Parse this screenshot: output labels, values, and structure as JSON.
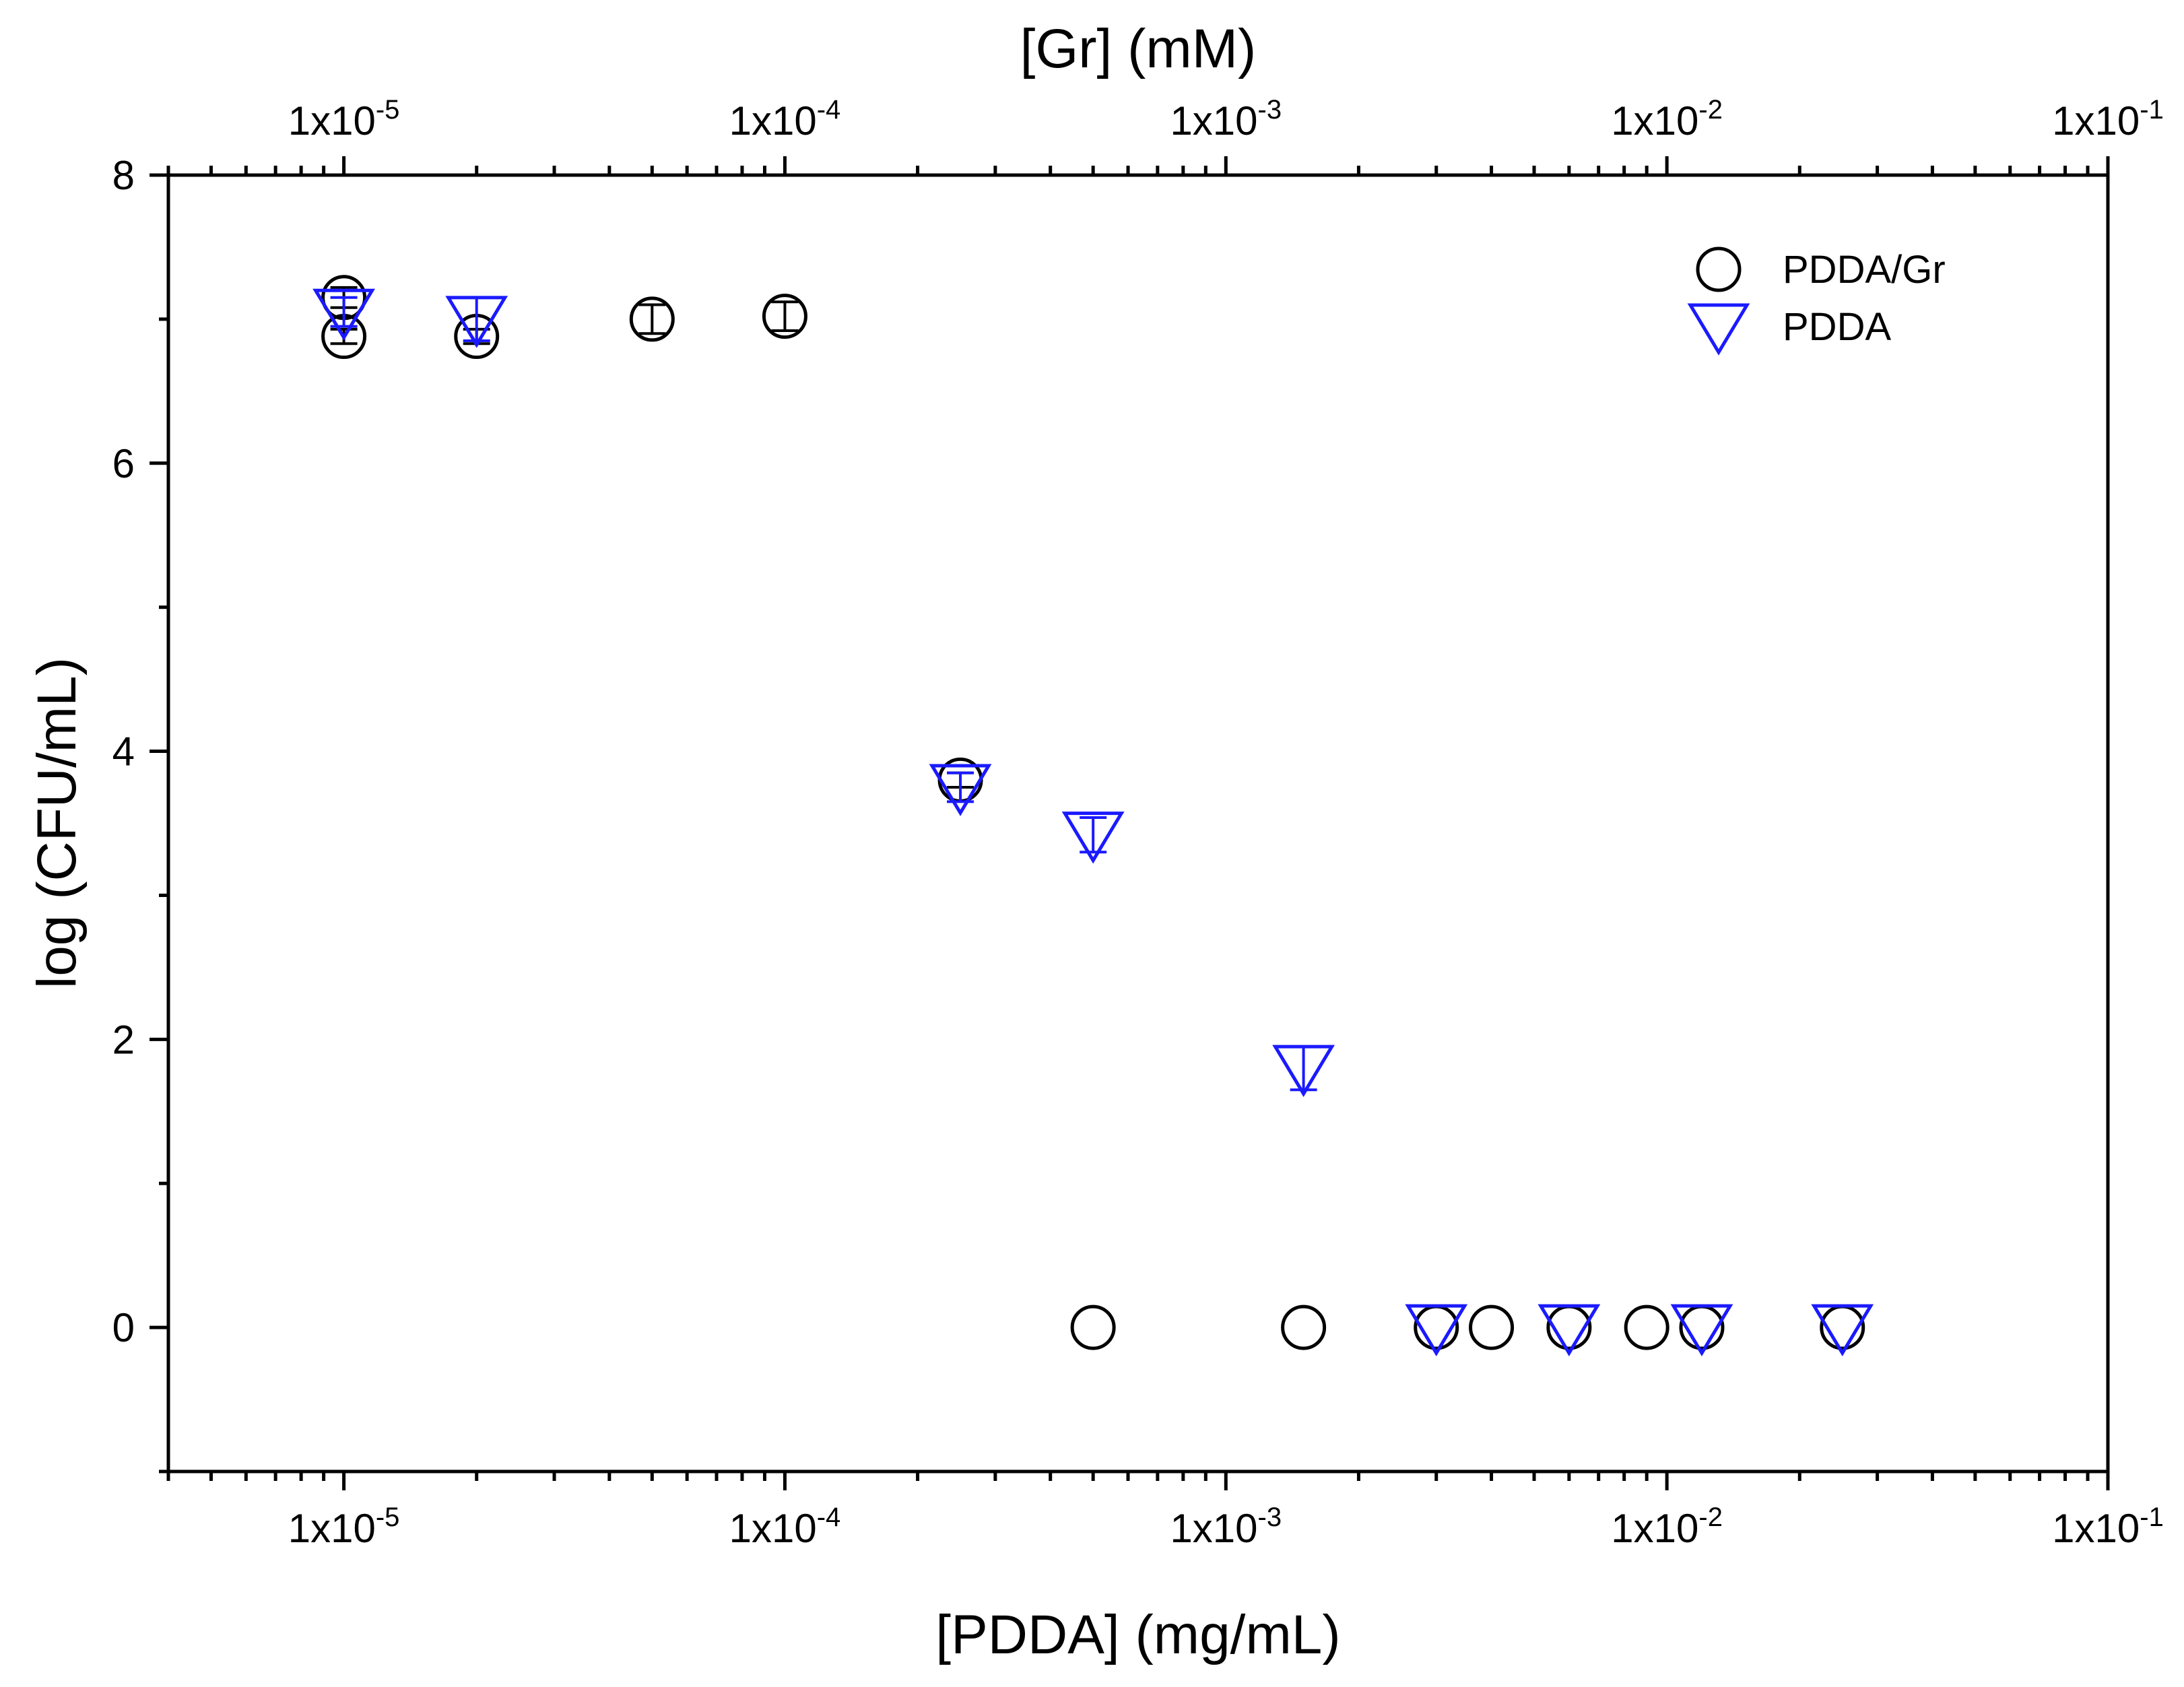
{
  "chart_data": {
    "type": "scatter",
    "xlabel": "[PDDA] (mg/mL)",
    "x2label": "[Gr] (mM)",
    "ylabel": "log (CFU/mL)",
    "xscale": "log",
    "xlim": [
      4e-06,
      0.1
    ],
    "ylim": [
      -1,
      8
    ],
    "yticks": [
      0,
      2,
      4,
      6,
      8
    ],
    "xticks": [
      {
        "value": 1e-05,
        "base": "1x10",
        "exp": "-5"
      },
      {
        "value": 0.0001,
        "base": "1x10",
        "exp": "-4"
      },
      {
        "value": 0.001,
        "base": "1x10",
        "exp": "-3"
      },
      {
        "value": 0.01,
        "base": "1x10",
        "exp": "-2"
      },
      {
        "value": 0.1,
        "base": "1x10",
        "exp": "-1"
      }
    ],
    "legend_position": "top-right",
    "series": [
      {
        "name": "PDDA/Gr",
        "marker": "circle",
        "color": "#000000",
        "points": [
          {
            "x": 1e-05,
            "y": 7.15,
            "err": 0.07
          },
          {
            "x": 1e-05,
            "y": 6.88,
            "err": 0.05
          },
          {
            "x": 2e-05,
            "y": 6.88,
            "err": 0.05
          },
          {
            "x": 5e-05,
            "y": 7.0,
            "err": 0.1
          },
          {
            "x": 0.0001,
            "y": 7.02,
            "err": 0.1
          },
          {
            "x": 0.00025,
            "y": 3.8,
            "err": 0.05
          },
          {
            "x": 0.0005,
            "y": 0,
            "err": 0
          },
          {
            "x": 0.0015,
            "y": 0,
            "err": 0
          },
          {
            "x": 0.003,
            "y": 0,
            "err": 0
          },
          {
            "x": 0.004,
            "y": 0,
            "err": 0
          },
          {
            "x": 0.006,
            "y": 0,
            "err": 0
          },
          {
            "x": 0.009,
            "y": 0,
            "err": 0
          },
          {
            "x": 0.012,
            "y": 0,
            "err": 0
          },
          {
            "x": 0.025,
            "y": 0,
            "err": 0
          }
        ]
      },
      {
        "name": "PDDA",
        "marker": "triangle-down",
        "color": "#1a1aff",
        "points": [
          {
            "x": 1e-05,
            "y": 7.05,
            "err": 0.1
          },
          {
            "x": 2e-05,
            "y": 7.0,
            "err": 0.15
          },
          {
            "x": 0.00025,
            "y": 3.75,
            "err": 0.1
          },
          {
            "x": 0.0005,
            "y": 3.42,
            "err": 0.12
          },
          {
            "x": 0.0015,
            "y": 1.8,
            "err": 0.15
          },
          {
            "x": 0.003,
            "y": 0,
            "err": 0
          },
          {
            "x": 0.006,
            "y": 0,
            "err": 0
          },
          {
            "x": 0.012,
            "y": 0,
            "err": 0
          },
          {
            "x": 0.025,
            "y": 0,
            "err": 0
          }
        ]
      }
    ]
  }
}
